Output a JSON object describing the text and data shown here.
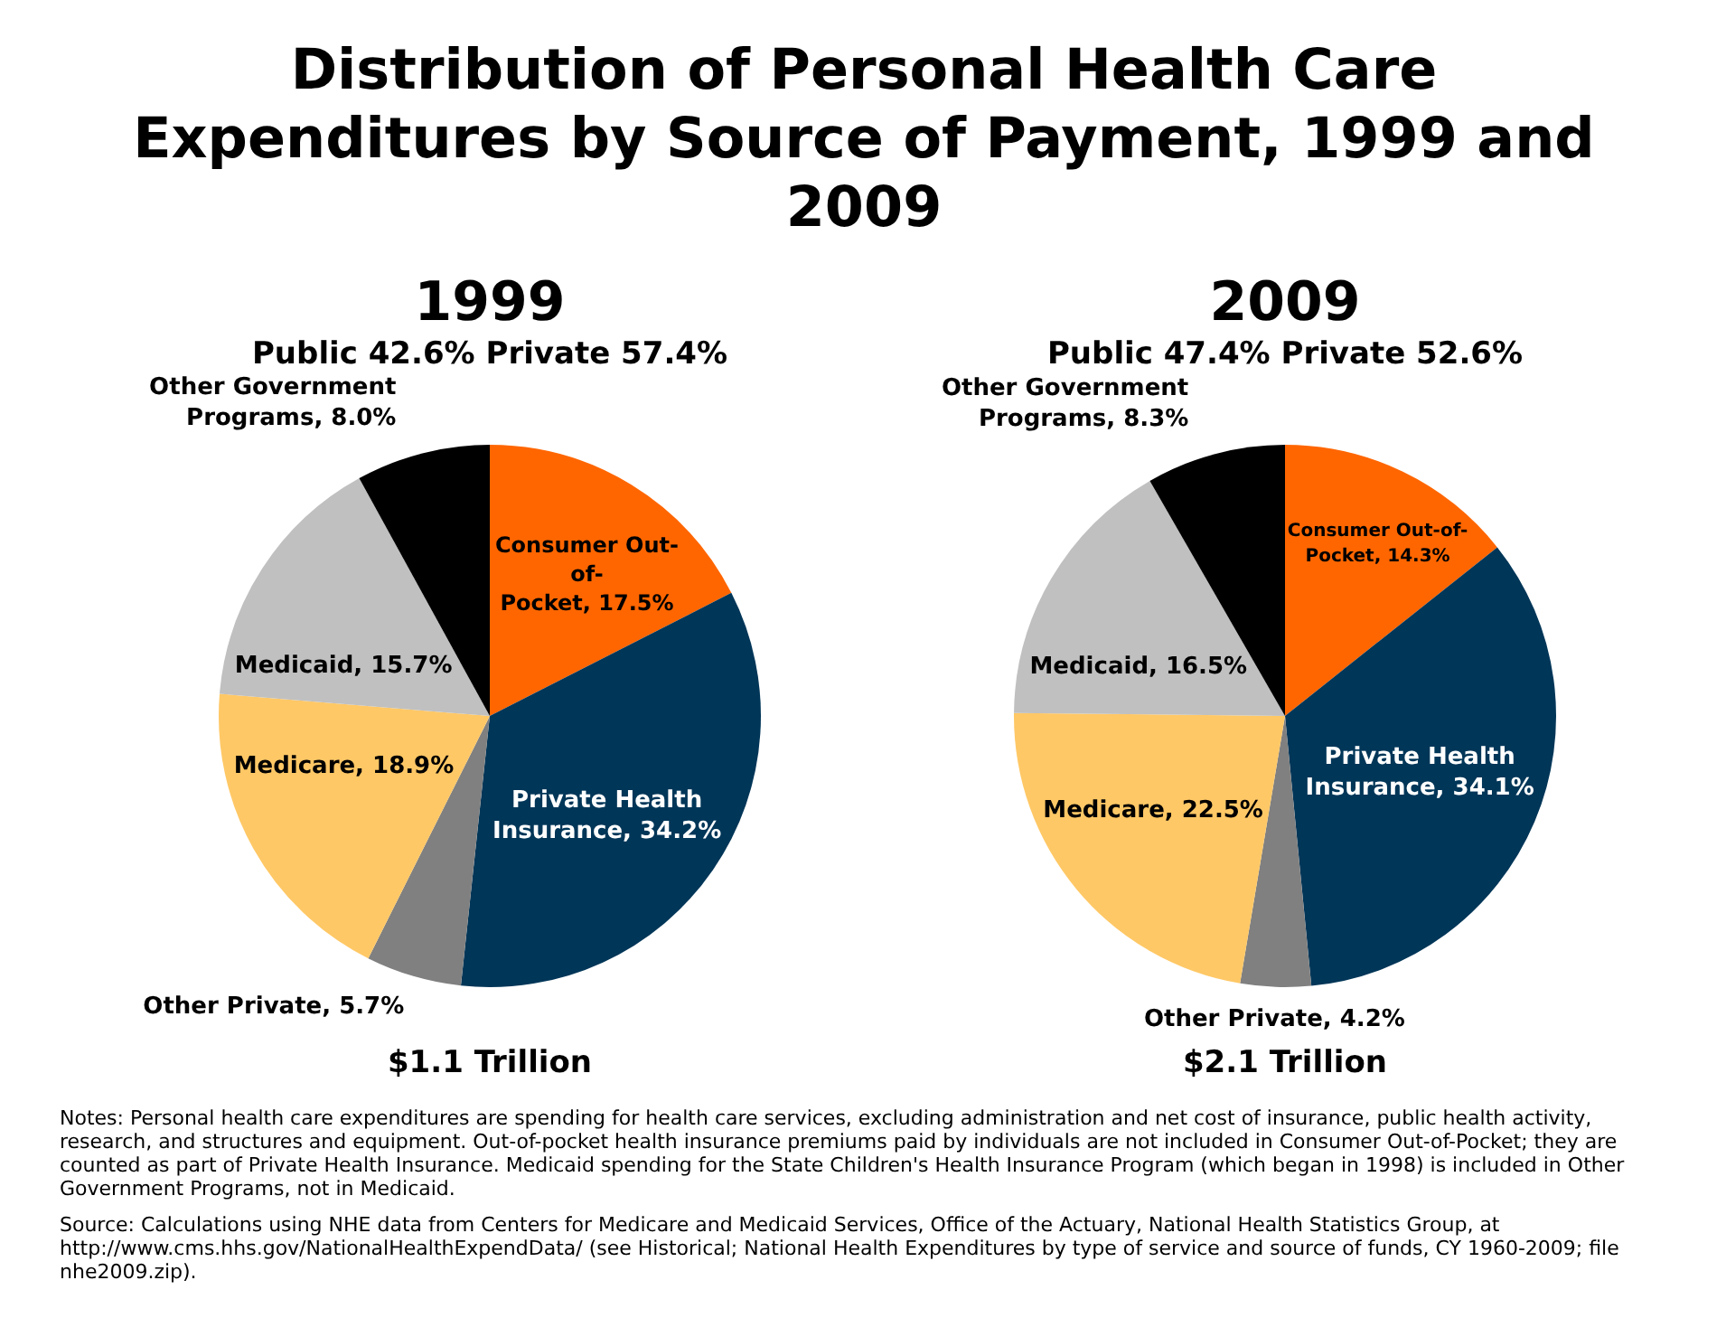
{
  "chart_data": [
    {
      "type": "pie",
      "title": "Distribution of Personal Health Care Expenditures by Source of Payment, 1999 and 2009",
      "subtitle": "1999",
      "annotations": [
        "Public 42.6% Private 57.4%",
        "$1.1 Trillion",
        "Notes: Personal health care expenditures are spending for health care services, excluding administration and net cost of insurance, public health activity, research, and structures and equipment. Out-of-pocket health insurance premiums paid by individuals are not included in Consumer Out-of-Pocket; they are counted as part of Private Health Insurance. Medicaid spending for the State Children's Health Insurance Program (which began in 1998) is included in Other Government Programs, not in Medicaid.",
        "Source: Calculations using NHE data from Centers for Medicare and Medicaid Services, Office of the Actuary, National Health Statistics Group, at http://www.cms.hhs.gov/NationalHealthExpendData/ (see Historical; National Health Expenditures by type of service and source of funds, CY 1960-2009; file nhe2009.zip)."
      ],
      "categories": [
        "Consumer Out-of-Pocket",
        "Private Health Insurance",
        "Other Private",
        "Medicare",
        "Medicaid",
        "Other Government Programs"
      ],
      "values": [
        17.5,
        34.2,
        5.7,
        18.9,
        15.7,
        8.0
      ],
      "value_labels": [
        "17.5%",
        "34.2%",
        "5.7%",
        "18.9%",
        "15.7%",
        "8.0%"
      ],
      "colors": [
        "#ff6600",
        "#003658",
        "#808080",
        "#ffc866",
        "#c0c0c0",
        "#000000"
      ],
      "legend": false
    },
    {
      "type": "pie",
      "subtitle": "2009",
      "annotations": [
        "Public 47.4% Private 52.6%",
        "$2.1 Trillion"
      ],
      "categories": [
        "Consumer Out-of-Pocket",
        "Private Health Insurance",
        "Other Private",
        "Medicare",
        "Medicaid",
        "Other Government Programs"
      ],
      "values": [
        14.3,
        34.1,
        4.2,
        22.5,
        16.5,
        8.3
      ],
      "value_labels": [
        "14.3%",
        "34.1%",
        "4.2%",
        "22.5%",
        "16.5%",
        "8.3%"
      ],
      "colors": [
        "#ff6600",
        "#003658",
        "#808080",
        "#ffc866",
        "#c0c0c0",
        "#000000"
      ],
      "legend": false
    }
  ]
}
